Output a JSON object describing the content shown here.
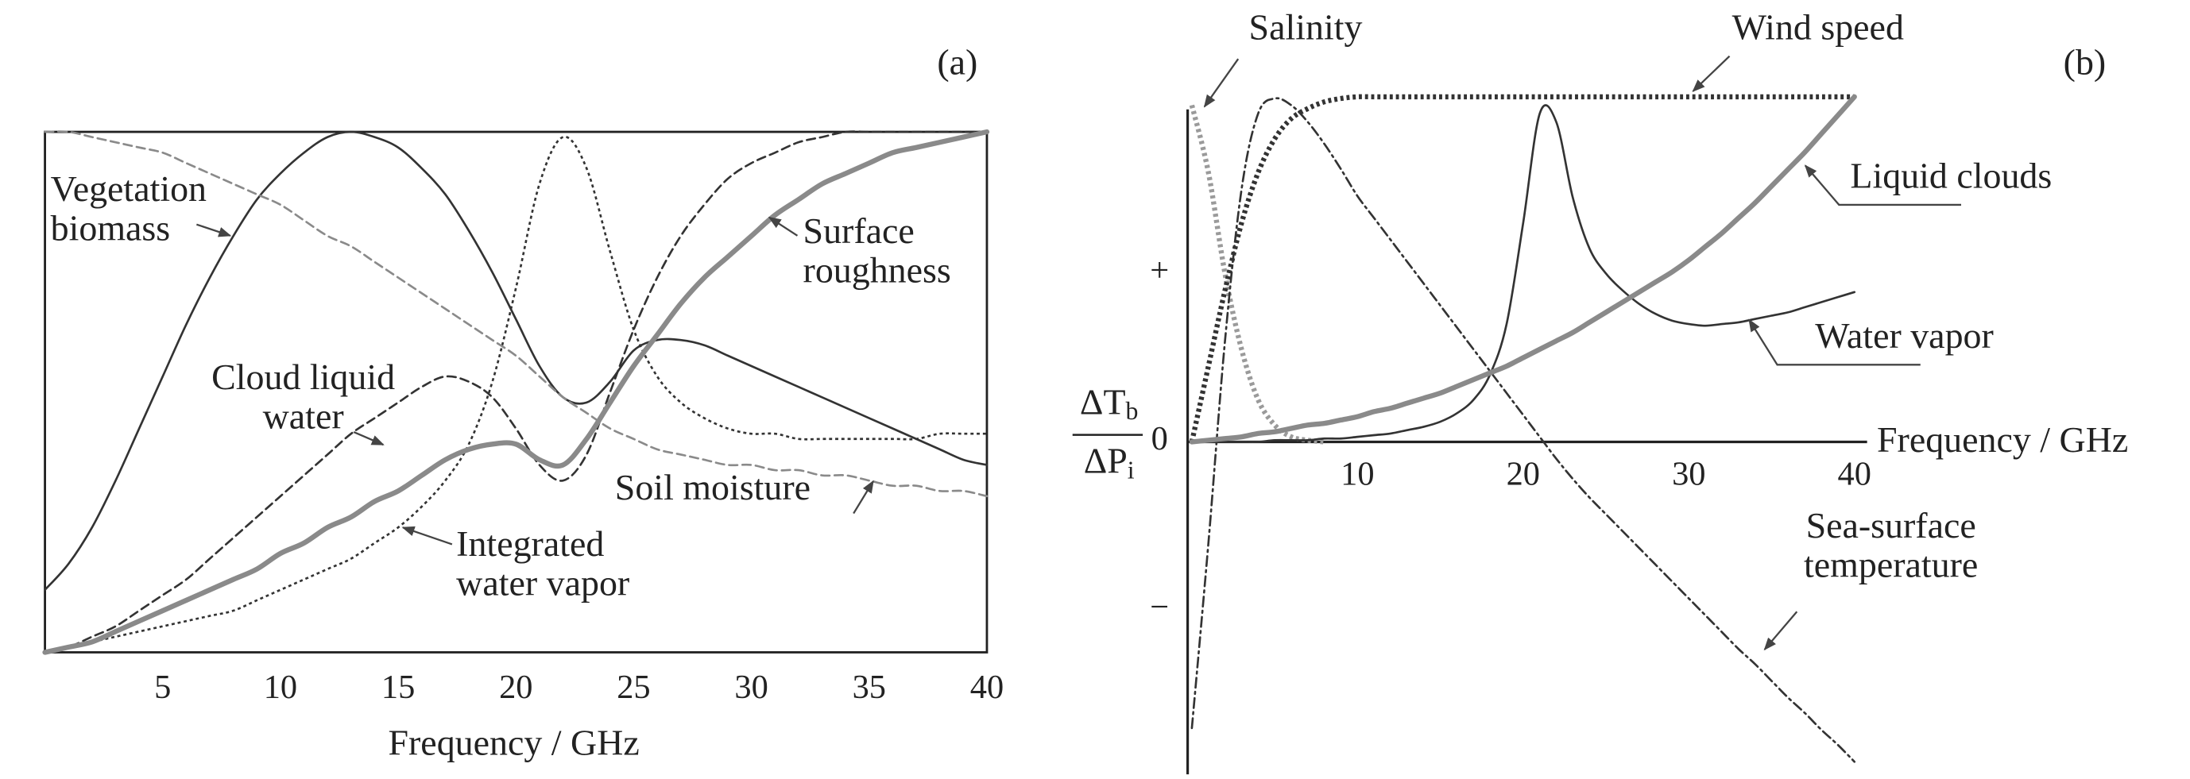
{
  "chart_data": [
    {
      "type": "line",
      "panel_label": "(a)",
      "x_label": "Frequency / GHz",
      "xlim": [
        0,
        40
      ],
      "ylim": [
        0,
        1
      ],
      "xticks": [
        5,
        10,
        15,
        20,
        25,
        30,
        35,
        40
      ],
      "grid": false,
      "x": [
        0,
        1,
        2,
        3,
        4,
        5,
        6,
        7,
        8,
        9,
        10,
        11,
        12,
        13,
        14,
        15,
        16,
        17,
        18,
        19,
        20,
        21,
        22,
        23,
        24,
        25,
        26,
        27,
        28,
        29,
        30,
        31,
        32,
        33,
        34,
        35,
        36,
        37,
        38,
        39,
        40
      ],
      "series": [
        {
          "name": "Vegetation\nbiomass",
          "color": "#333333",
          "line_style": "solid",
          "weight": "light",
          "values": [
            0.12,
            0.17,
            0.24,
            0.33,
            0.43,
            0.53,
            0.63,
            0.72,
            0.8,
            0.87,
            0.92,
            0.96,
            0.99,
            1.0,
            0.99,
            0.97,
            0.93,
            0.88,
            0.81,
            0.73,
            0.64,
            0.55,
            0.49,
            0.48,
            0.52,
            0.58,
            0.6,
            0.6,
            0.59,
            0.57,
            0.55,
            0.53,
            0.51,
            0.49,
            0.47,
            0.45,
            0.43,
            0.41,
            0.39,
            0.37,
            0.36
          ]
        },
        {
          "name": "Cloud liquid\nwater",
          "color": "#333333",
          "line_style": "dashed",
          "weight": "light",
          "values": [
            0.0,
            0.01,
            0.03,
            0.05,
            0.08,
            0.11,
            0.14,
            0.18,
            0.22,
            0.26,
            0.3,
            0.34,
            0.38,
            0.42,
            0.45,
            0.48,
            0.51,
            0.53,
            0.52,
            0.49,
            0.43,
            0.36,
            0.33,
            0.38,
            0.5,
            0.62,
            0.72,
            0.8,
            0.86,
            0.91,
            0.94,
            0.96,
            0.98,
            0.99,
            1.0,
            1.0,
            1.0,
            1.0,
            1.0,
            1.0,
            1.0
          ]
        },
        {
          "name": "Integrated\nwater vapor",
          "color": "#333333",
          "line_style": "dotted",
          "weight": "light",
          "values": [
            0.0,
            0.01,
            0.02,
            0.03,
            0.04,
            0.05,
            0.06,
            0.07,
            0.08,
            0.1,
            0.12,
            0.14,
            0.16,
            0.18,
            0.21,
            0.24,
            0.28,
            0.33,
            0.4,
            0.52,
            0.7,
            0.9,
            0.99,
            0.93,
            0.77,
            0.62,
            0.53,
            0.48,
            0.45,
            0.43,
            0.42,
            0.42,
            0.41,
            0.41,
            0.41,
            0.41,
            0.41,
            0.41,
            0.42,
            0.42,
            0.42
          ]
        },
        {
          "name": "Surface\nroughness",
          "color": "#8a8a8a",
          "line_style": "solid",
          "weight": "heavy",
          "values": [
            0.0,
            0.01,
            0.02,
            0.04,
            0.06,
            0.08,
            0.1,
            0.12,
            0.14,
            0.16,
            0.19,
            0.21,
            0.24,
            0.26,
            0.29,
            0.31,
            0.34,
            0.37,
            0.39,
            0.4,
            0.4,
            0.37,
            0.36,
            0.41,
            0.48,
            0.55,
            0.61,
            0.67,
            0.72,
            0.76,
            0.8,
            0.84,
            0.87,
            0.9,
            0.92,
            0.94,
            0.96,
            0.97,
            0.98,
            0.99,
            1.0
          ]
        },
        {
          "name": "Soil moisture",
          "color": "#8a8a8a",
          "line_style": "dashed",
          "weight": "light",
          "values": [
            1.0,
            1.0,
            0.99,
            0.98,
            0.97,
            0.96,
            0.94,
            0.92,
            0.9,
            0.88,
            0.86,
            0.83,
            0.8,
            0.78,
            0.75,
            0.72,
            0.69,
            0.66,
            0.63,
            0.6,
            0.57,
            0.53,
            0.49,
            0.46,
            0.43,
            0.41,
            0.39,
            0.38,
            0.37,
            0.36,
            0.36,
            0.35,
            0.35,
            0.34,
            0.34,
            0.33,
            0.32,
            0.32,
            0.31,
            0.31,
            0.3
          ]
        }
      ]
    },
    {
      "type": "line",
      "panel_label": "(b)",
      "x_label": "Frequency / GHz",
      "y_label": {
        "numerator": "ΔT",
        "numerator_sub": "b",
        "denominator": "ΔP",
        "denominator_sub": "i"
      },
      "xlim": [
        0,
        40
      ],
      "ylim": [
        -2,
        2.1
      ],
      "xticks": [
        10,
        20,
        30,
        40
      ],
      "yticks": [
        {
          "value": 1,
          "label": "+"
        },
        0,
        {
          "value": -1,
          "label": "−"
        }
      ],
      "grid": false,
      "x": [
        0,
        1,
        2,
        3,
        4,
        5,
        6,
        7,
        8,
        9,
        10,
        11,
        12,
        13,
        14,
        15,
        16,
        17,
        18,
        19,
        20,
        21,
        22,
        23,
        24,
        25,
        26,
        27,
        28,
        29,
        30,
        31,
        32,
        33,
        34,
        35,
        36,
        37,
        38,
        39,
        40
      ],
      "series": [
        {
          "name": "Salinity",
          "color": "#9a9a9a",
          "line_style": "dotted",
          "weight": "heavy",
          "values": [
            2.0,
            1.6,
            1.0,
            0.55,
            0.25,
            0.1,
            0.03,
            0.01,
            0.0,
            null,
            null,
            null,
            null,
            null,
            null,
            null,
            null,
            null,
            null,
            null,
            null,
            null,
            null,
            null,
            null,
            null,
            null,
            null,
            null,
            null,
            null,
            null,
            null,
            null,
            null,
            null,
            null,
            null,
            null,
            null,
            null
          ]
        },
        {
          "name": "Sea-surface\ntemperature",
          "color": "#333333",
          "line_style": "dash-dot",
          "weight": "light",
          "values": [
            -1.7,
            -0.6,
            0.6,
            1.5,
            1.95,
            2.04,
            2.0,
            1.9,
            1.77,
            1.62,
            1.46,
            1.33,
            1.2,
            1.07,
            0.94,
            0.81,
            0.68,
            0.55,
            0.42,
            0.29,
            0.16,
            0.03,
            -0.1,
            -0.22,
            -0.33,
            -0.43,
            -0.53,
            -0.63,
            -0.73,
            -0.83,
            -0.93,
            -1.03,
            -1.13,
            -1.23,
            -1.32,
            -1.42,
            -1.52,
            -1.61,
            -1.71,
            -1.8,
            -1.9
          ]
        },
        {
          "name": "Wind speed",
          "color": "#333333",
          "line_style": "dotted",
          "weight": "heavy",
          "values": [
            0,
            0.45,
            0.9,
            1.3,
            1.6,
            1.8,
            1.92,
            1.98,
            2.02,
            2.04,
            2.05,
            2.05,
            2.05,
            2.05,
            2.05,
            2.05,
            2.05,
            2.05,
            2.05,
            2.05,
            2.05,
            2.05,
            2.05,
            2.05,
            2.05,
            2.05,
            2.05,
            2.05,
            2.05,
            2.05,
            2.05,
            2.05,
            2.05,
            2.05,
            2.05,
            2.05,
            2.05,
            2.05,
            2.05,
            2.05,
            2.05
          ]
        },
        {
          "name": "Water vapor",
          "color": "#333333",
          "line_style": "solid",
          "weight": "light",
          "values": [
            0,
            0,
            0,
            0,
            0,
            0.01,
            0.01,
            0.01,
            0.02,
            0.02,
            0.03,
            0.04,
            0.05,
            0.07,
            0.09,
            0.12,
            0.17,
            0.25,
            0.4,
            0.7,
            1.3,
            1.95,
            1.9,
            1.45,
            1.15,
            1.0,
            0.9,
            0.82,
            0.76,
            0.72,
            0.7,
            0.69,
            0.7,
            0.71,
            0.73,
            0.75,
            0.77,
            0.8,
            0.83,
            0.86,
            0.89
          ]
        },
        {
          "name": "Liquid clouds",
          "color": "#8a8a8a",
          "line_style": "solid",
          "weight": "heavy",
          "values": [
            0,
            0.01,
            0.02,
            0.03,
            0.05,
            0.06,
            0.08,
            0.1,
            0.11,
            0.13,
            0.15,
            0.18,
            0.2,
            0.23,
            0.26,
            0.29,
            0.33,
            0.37,
            0.41,
            0.45,
            0.5,
            0.55,
            0.6,
            0.65,
            0.71,
            0.77,
            0.83,
            0.89,
            0.95,
            1.01,
            1.08,
            1.16,
            1.24,
            1.33,
            1.42,
            1.52,
            1.62,
            1.72,
            1.83,
            1.94,
            2.05
          ]
        }
      ]
    }
  ]
}
